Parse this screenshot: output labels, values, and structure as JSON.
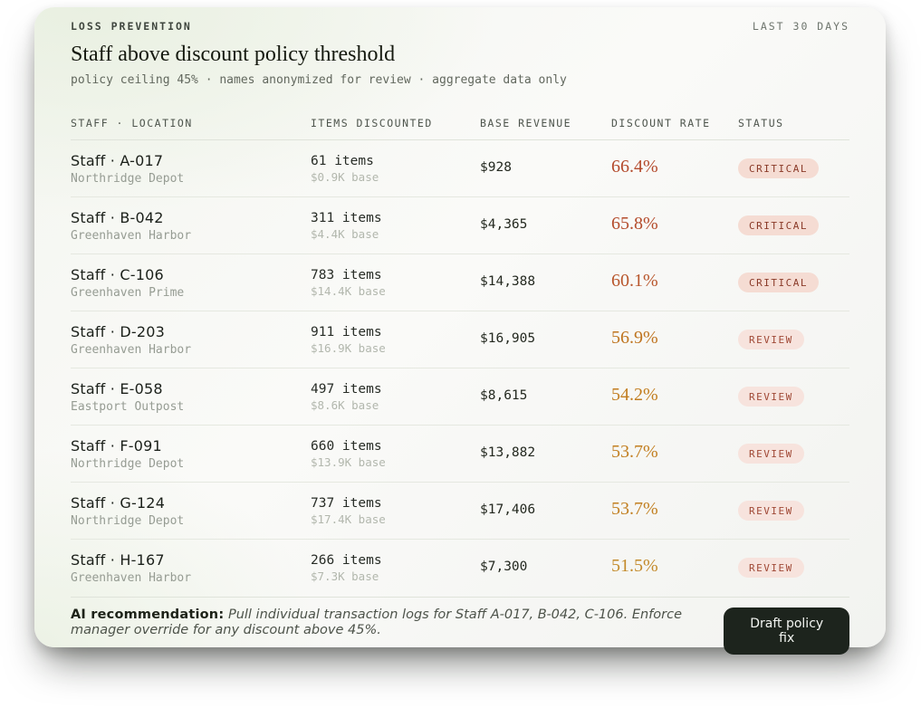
{
  "meta": {
    "eyebrow": "LOSS PREVENTION",
    "period": "LAST 30 DAYS"
  },
  "header": {
    "title": "Staff above discount policy threshold",
    "subtitle": "policy ceiling 45% · names anonymized for review · aggregate data only"
  },
  "table": {
    "columns": [
      "STAFF · LOCATION",
      "ITEMS DISCOUNTED",
      "BASE REVENUE",
      "DISCOUNT RATE",
      "STATUS"
    ],
    "rows": [
      {
        "staff": "Staff · A-017",
        "location": "Northridge Depot",
        "items": "61 items",
        "base": "$0.9K base",
        "revenue": "$928",
        "rate": "66.4%",
        "rate_color": "#b44a2c",
        "status": "CRITICAL"
      },
      {
        "staff": "Staff · B-042",
        "location": "Greenhaven Harbor",
        "items": "311 items",
        "base": "$4.4K base",
        "revenue": "$4,365",
        "rate": "65.8%",
        "rate_color": "#b44c2c",
        "status": "CRITICAL"
      },
      {
        "staff": "Staff · C-106",
        "location": "Greenhaven Prime",
        "items": "783 items",
        "base": "$14.4K base",
        "revenue": "$14,388",
        "rate": "60.1%",
        "rate_color": "#b8562c",
        "status": "CRITICAL"
      },
      {
        "staff": "Staff · D-203",
        "location": "Greenhaven Harbor",
        "items": "911 items",
        "base": "$16.9K base",
        "revenue": "$16,905",
        "rate": "56.9%",
        "rate_color": "#bf7520",
        "status": "REVIEW"
      },
      {
        "staff": "Staff · E-058",
        "location": "Eastport Outpost",
        "items": "497 items",
        "base": "$8.6K base",
        "revenue": "$8,615",
        "rate": "54.2%",
        "rate_color": "#c27d1f",
        "status": "REVIEW"
      },
      {
        "staff": "Staff · F-091",
        "location": "Northridge Depot",
        "items": "660 items",
        "base": "$13.9K base",
        "revenue": "$13,882",
        "rate": "53.7%",
        "rate_color": "#c27f20",
        "status": "REVIEW"
      },
      {
        "staff": "Staff · G-124",
        "location": "Northridge Depot",
        "items": "737 items",
        "base": "$17.4K base",
        "revenue": "$17,406",
        "rate": "53.7%",
        "rate_color": "#c27f20",
        "status": "REVIEW"
      },
      {
        "staff": "Staff · H-167",
        "location": "Greenhaven Harbor",
        "items": "266 items",
        "base": "$7.3K base",
        "revenue": "$7,300",
        "rate": "51.5%",
        "rate_color": "#c38a2a",
        "status": "REVIEW"
      }
    ]
  },
  "status_styles": {
    "CRITICAL": {
      "bg": "#f5dcd3",
      "fg": "#8a3a28"
    },
    "REVIEW": {
      "bg": "#f7e3dd",
      "fg": "#a04936"
    }
  },
  "footer": {
    "label": "AI recommendation:",
    "text": "Pull individual transaction logs for Staff A-017, B-042, C-106. Enforce manager override for any discount above 45%.",
    "button": "Draft policy fix"
  }
}
